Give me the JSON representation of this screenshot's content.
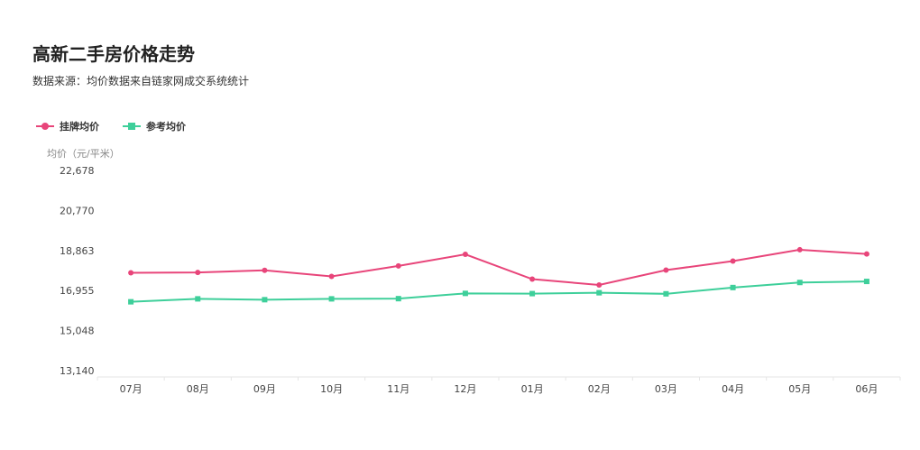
{
  "header": {
    "title": "高新二手房价格走势",
    "subtitle": "数据来源：均价数据来自链家网成交系统统计"
  },
  "colors": {
    "listing": "#e8457a",
    "reference": "#3ecf9a",
    "axis": "#e5e5e5"
  },
  "chart_data": {
    "type": "line",
    "ylabel": "均价（元/平米）",
    "categories": [
      "07月",
      "08月",
      "09月",
      "10月",
      "11月",
      "12月",
      "01月",
      "02月",
      "03月",
      "04月",
      "05月",
      "06月"
    ],
    "y_ticks": [
      "22,678",
      "20,770",
      "18,863",
      "16,955",
      "15,048",
      "13,140"
    ],
    "ylim": [
      13140,
      22678
    ],
    "grid": false,
    "legend_position": "top-left",
    "series": [
      {
        "name": "挂牌均价",
        "marker": "circle",
        "values": [
          17800,
          17820,
          17920,
          17630,
          18130,
          18680,
          17500,
          17220,
          17930,
          18360,
          18900,
          18700
        ]
      },
      {
        "name": "参考均价",
        "marker": "square",
        "values": [
          16420,
          16560,
          16520,
          16560,
          16570,
          16820,
          16810,
          16850,
          16800,
          17100,
          17340,
          17390
        ]
      }
    ]
  }
}
